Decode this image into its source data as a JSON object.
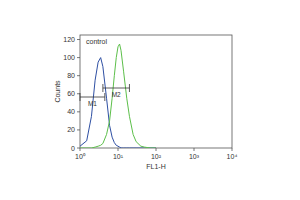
{
  "chart_data": {
    "type": "line",
    "log": "x",
    "x_label": "FL1-H",
    "y_label": "Counts",
    "x": [
      1,
      1.5,
      2,
      2.5,
      3,
      3.5,
      4,
      5,
      6,
      7,
      8,
      9,
      10,
      11,
      12,
      14,
      17,
      20,
      25,
      30,
      40,
      50,
      70,
      100
    ],
    "series": [
      {
        "name": "control",
        "color": "#2e4fa3",
        "values": [
          2,
          8,
          35,
          75,
          95,
          100,
          90,
          55,
          25,
          12,
          6,
          3,
          2,
          1,
          0,
          0,
          0,
          0,
          0,
          0,
          0,
          0,
          0,
          0
        ]
      },
      {
        "color": "#5cbf4a",
        "values": [
          0,
          0,
          0,
          1,
          2,
          3,
          5,
          15,
          30,
          55,
          80,
          100,
          112,
          115,
          108,
          85,
          55,
          35,
          15,
          7,
          2,
          1,
          0,
          0
        ]
      }
    ],
    "gates": [
      {
        "label": "M1",
        "range": [
          1,
          4.5
        ]
      },
      {
        "label": "M2",
        "range": [
          4,
          20
        ]
      }
    ],
    "xlim": [
      1,
      10000
    ],
    "xticks": [
      {
        "value": 1,
        "label": "10⁰"
      },
      {
        "value": 10,
        "label": "10¹"
      },
      {
        "value": 100,
        "label": "10²"
      },
      {
        "value": 1000,
        "label": "10³"
      },
      {
        "value": 10000,
        "label": "10⁴"
      }
    ],
    "ylim": [
      0,
      125
    ],
    "yticks": [
      0,
      20,
      40,
      60,
      80,
      100,
      120
    ]
  }
}
